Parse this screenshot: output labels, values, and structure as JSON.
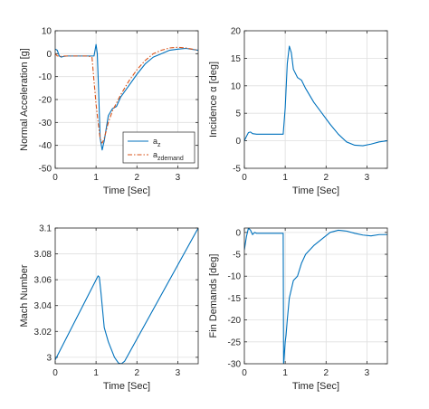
{
  "colors": {
    "series1": "#0072BD",
    "series2": "#D95319",
    "grid": "#DFDFDF",
    "axis": "#262626"
  },
  "chart_data": [
    {
      "type": "line",
      "xlabel": "Time [Sec]",
      "ylabel": "Normal Acceleration [g]",
      "xlim": [
        0,
        3.5
      ],
      "ylim": [
        -50,
        10
      ],
      "xticks": [
        "0",
        "1",
        "2",
        "3"
      ],
      "yticks": [
        "-50",
        "-40",
        "-30",
        "-20",
        "-10",
        "0",
        "10"
      ],
      "grid": true,
      "legend_position": "bottom-right",
      "legend": [
        {
          "base": "a",
          "sub": "z"
        },
        {
          "base": "a",
          "sub": "zdemand"
        }
      ],
      "series": [
        {
          "name": "az",
          "style": "solid",
          "x": [
            0,
            0.05,
            0.1,
            0.15,
            0.2,
            0.3,
            0.5,
            0.8,
            0.95,
            1.0,
            1.03,
            1.06,
            1.1,
            1.15,
            1.2,
            1.3,
            1.4,
            1.5,
            1.6,
            1.8,
            2.0,
            2.2,
            2.4,
            2.6,
            2.8,
            3.0,
            3.2,
            3.5
          ],
          "y": [
            2,
            1.5,
            -1,
            -1.5,
            -1.2,
            -1,
            -1,
            -1,
            -1,
            4,
            0,
            -15,
            -37,
            -42,
            -38,
            -27,
            -24,
            -23,
            -19,
            -14,
            -9,
            -4.5,
            -1.5,
            0,
            1.5,
            2,
            2.3,
            1.5
          ]
        },
        {
          "name": "azdemand",
          "style": "dashdot",
          "x": [
            0,
            0.05,
            0.1,
            0.15,
            0.2,
            0.3,
            0.5,
            0.8,
            0.9,
            0.95,
            1.0,
            1.05,
            1.1,
            1.15,
            1.2,
            1.3,
            1.4,
            1.6,
            1.8,
            2.0,
            2.2,
            2.4,
            2.6,
            2.8,
            3.0,
            3.2,
            3.5
          ],
          "y": [
            0,
            -1,
            -1,
            -1.2,
            -1,
            -1,
            -1,
            -1,
            -1.5,
            -12,
            -22,
            -30,
            -37,
            -39,
            -37,
            -30,
            -25,
            -18,
            -12,
            -7,
            -3,
            0,
            1.5,
            2.5,
            2.8,
            2.5,
            1.5
          ]
        }
      ]
    },
    {
      "type": "line",
      "xlabel": "Time [Sec]",
      "ylabel": "Incidence α [deg]",
      "xlim": [
        0,
        3.5
      ],
      "ylim": [
        -5,
        20
      ],
      "xticks": [
        "0",
        "1",
        "2",
        "3"
      ],
      "yticks": [
        "-5",
        "0",
        "5",
        "10",
        "15",
        "20"
      ],
      "grid": true,
      "series": [
        {
          "name": "",
          "style": "solid",
          "x": [
            0,
            0.05,
            0.1,
            0.15,
            0.2,
            0.3,
            0.5,
            0.8,
            0.95,
            1.0,
            1.05,
            1.1,
            1.15,
            1.2,
            1.3,
            1.4,
            1.5,
            1.7,
            1.9,
            2.1,
            2.3,
            2.5,
            2.7,
            2.9,
            3.1,
            3.3,
            3.5
          ],
          "y": [
            0,
            0.8,
            1.5,
            1.6,
            1.3,
            1.2,
            1.2,
            1.2,
            1.2,
            6,
            14,
            17.2,
            16,
            13,
            11.5,
            11,
            9.5,
            7,
            5,
            3,
            1.2,
            -0.2,
            -0.8,
            -0.9,
            -0.6,
            -0.2,
            0
          ]
        }
      ]
    },
    {
      "type": "line",
      "xlabel": "Time [Sec]",
      "ylabel": "Mach Number",
      "xlim": [
        0,
        3.5
      ],
      "ylim": [
        2.995,
        3.1
      ],
      "xticks": [
        "0",
        "1",
        "2",
        "3"
      ],
      "yticks": [
        "3",
        "3.02",
        "3.04",
        "3.06",
        "3.08",
        "3.1"
      ],
      "grid": true,
      "series": [
        {
          "name": "",
          "style": "solid",
          "x": [
            0,
            1.05,
            1.08,
            1.12,
            1.2,
            1.3,
            1.45,
            1.55,
            1.62,
            1.7,
            3.5
          ],
          "y": [
            2.998,
            3.063,
            3.062,
            3.05,
            3.023,
            3.012,
            3.0,
            2.9955,
            2.995,
            2.997,
            3.1
          ]
        }
      ]
    },
    {
      "type": "line",
      "xlabel": "Time [Sec]",
      "ylabel": "Fin Demands [deg]",
      "xlim": [
        0,
        3.5
      ],
      "ylim": [
        -30,
        1
      ],
      "xticks": [
        "0",
        "1",
        "2",
        "3"
      ],
      "yticks": [
        "-30",
        "-25",
        "-20",
        "-15",
        "-10",
        "-5",
        "0"
      ],
      "grid": true,
      "series": [
        {
          "name": "",
          "style": "solid",
          "x": [
            0,
            0.05,
            0.1,
            0.15,
            0.2,
            0.25,
            0.3,
            0.4,
            0.6,
            0.8,
            0.95,
            0.96,
            0.97,
            1.0,
            1.02,
            1.05,
            1.1,
            1.2,
            1.3,
            1.4,
            1.5,
            1.7,
            1.9,
            2.1,
            2.3,
            2.5,
            2.7,
            2.9,
            3.1,
            3.3,
            3.5
          ],
          "y": [
            -4,
            -1,
            1,
            0.5,
            -0.5,
            0,
            -0.2,
            -0.2,
            -0.2,
            -0.2,
            -0.2,
            -30,
            -29,
            -25,
            -23.5,
            -20,
            -15,
            -11,
            -10,
            -7,
            -5,
            -3,
            -1.5,
            0,
            0.5,
            0.3,
            -0.2,
            -0.6,
            -0.8,
            -0.5,
            -0.5
          ]
        }
      ]
    }
  ]
}
